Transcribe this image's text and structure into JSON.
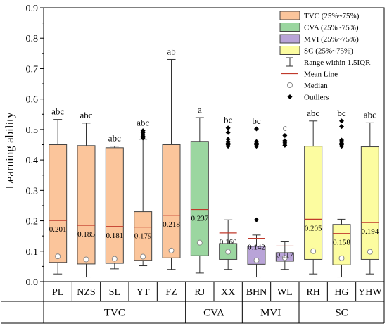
{
  "chart_data": {
    "type": "box",
    "ylabel": "Learning ability",
    "ylim": [
      0,
      0.9
    ],
    "yticks": [
      "0.0",
      "0.1",
      "0.2",
      "0.3",
      "0.4",
      "0.5",
      "0.6",
      "0.7",
      "0.8",
      "0.9"
    ],
    "groups": [
      {
        "name": "TVC",
        "color": "#fbc59b",
        "start": 0,
        "end": 5
      },
      {
        "name": "CVA",
        "color": "#9bd6a0",
        "start": 5,
        "end": 7
      },
      {
        "name": "MVI",
        "color": "#b9a4d8",
        "start": 7,
        "end": 9
      },
      {
        "name": "SC",
        "color": "#fcfca0",
        "start": 9,
        "end": 12
      }
    ],
    "boxes": [
      {
        "label": "PL",
        "group": 0,
        "q1": 0.063,
        "q3": 0.45,
        "wlo": 0.025,
        "whi": 0.533,
        "mean": 0.201,
        "median": 0.083,
        "mean_label": "0.201",
        "letter": "abc",
        "outliers": []
      },
      {
        "label": "NZS",
        "group": 0,
        "q1": 0.058,
        "q3": 0.447,
        "wlo": 0.015,
        "whi": 0.521,
        "mean": 0.185,
        "median": 0.073,
        "mean_label": "0.185",
        "letter": "abc",
        "outliers": []
      },
      {
        "label": "SL",
        "group": 0,
        "q1": 0.06,
        "q3": 0.44,
        "wlo": 0.042,
        "whi": 0.445,
        "mean": 0.181,
        "median": 0.075,
        "mean_label": "0.181",
        "letter": "abc",
        "outliers": []
      },
      {
        "label": "YT",
        "group": 0,
        "q1": 0.07,
        "q3": 0.23,
        "wlo": 0.052,
        "whi": 0.468,
        "mean": 0.179,
        "median": 0.082,
        "mean_label": "0.179",
        "letter": "abc",
        "outliers": [
          0.472,
          0.478,
          0.484,
          0.49,
          0.496
        ]
      },
      {
        "label": "FZ",
        "group": 0,
        "q1": 0.078,
        "q3": 0.45,
        "wlo": 0.04,
        "whi": 0.73,
        "mean": 0.218,
        "median": 0.102,
        "mean_label": "0.218",
        "letter": "ab",
        "outliers": []
      },
      {
        "label": "RJ",
        "group": 1,
        "q1": 0.085,
        "q3": 0.461,
        "wlo": 0.028,
        "whi": 0.539,
        "mean": 0.237,
        "median": 0.128,
        "mean_label": "0.237",
        "letter": "a",
        "outliers": []
      },
      {
        "label": "XX",
        "group": 1,
        "q1": 0.073,
        "q3": 0.125,
        "wlo": 0.04,
        "whi": 0.203,
        "mean": 0.16,
        "median": 0.098,
        "mean_label": "0.160",
        "letter": "bc",
        "outliers": [
          0.445,
          0.45,
          0.455,
          0.46,
          0.468,
          0.49,
          0.505
        ]
      },
      {
        "label": "BHN",
        "group": 2,
        "q1": 0.057,
        "q3": 0.116,
        "wlo": 0.015,
        "whi": 0.153,
        "mean": 0.142,
        "median": 0.07,
        "mean_label": "0.142",
        "letter": "bc",
        "outliers": [
          0.203,
          0.445,
          0.45,
          0.455,
          0.46,
          0.502
        ]
      },
      {
        "label": "WL",
        "group": 2,
        "q1": 0.067,
        "q3": 0.095,
        "wlo": 0.04,
        "whi": 0.133,
        "mean": 0.117,
        "median": 0.078,
        "mean_label": "0.117",
        "letter": "c",
        "outliers": [
          0.448,
          0.453,
          0.458,
          0.463,
          0.48
        ]
      },
      {
        "label": "RH",
        "group": 3,
        "q1": 0.073,
        "q3": 0.445,
        "wlo": 0.025,
        "whi": 0.528,
        "mean": 0.205,
        "median": 0.1,
        "mean_label": "0.205",
        "letter": "abc",
        "outliers": []
      },
      {
        "label": "HG",
        "group": 3,
        "q1": 0.055,
        "q3": 0.188,
        "wlo": 0.015,
        "whi": 0.205,
        "mean": 0.158,
        "median": 0.077,
        "mean_label": "0.158",
        "letter": "bc",
        "outliers": [
          0.445,
          0.45,
          0.455,
          0.46,
          0.465,
          0.51,
          0.528
        ]
      },
      {
        "label": "YHW",
        "group": 3,
        "q1": 0.073,
        "q3": 0.443,
        "wlo": 0.025,
        "whi": 0.522,
        "mean": 0.194,
        "median": 0.098,
        "mean_label": "0.194",
        "letter": "abc",
        "outliers": []
      }
    ],
    "legend": {
      "position": "top-right",
      "entries": [
        {
          "type": "box",
          "label": "TVC (25%~75%)",
          "color": "#fbc59b"
        },
        {
          "type": "box",
          "label": "CVA (25%~75%)",
          "color": "#9bd6a0"
        },
        {
          "type": "box",
          "label": "MVI (25%~75%)",
          "color": "#b9a4d8"
        },
        {
          "type": "box",
          "label": "SC (25%~75%)",
          "color": "#fcfca0"
        },
        {
          "type": "whisker",
          "label": "Range within 1.5IQR"
        },
        {
          "type": "mean",
          "label": "Mean Line",
          "color": "#c0392b"
        },
        {
          "type": "median",
          "label": "Median"
        },
        {
          "type": "outlier",
          "label": "Outliers"
        }
      ]
    },
    "mean_line_color": "#c0392b"
  }
}
